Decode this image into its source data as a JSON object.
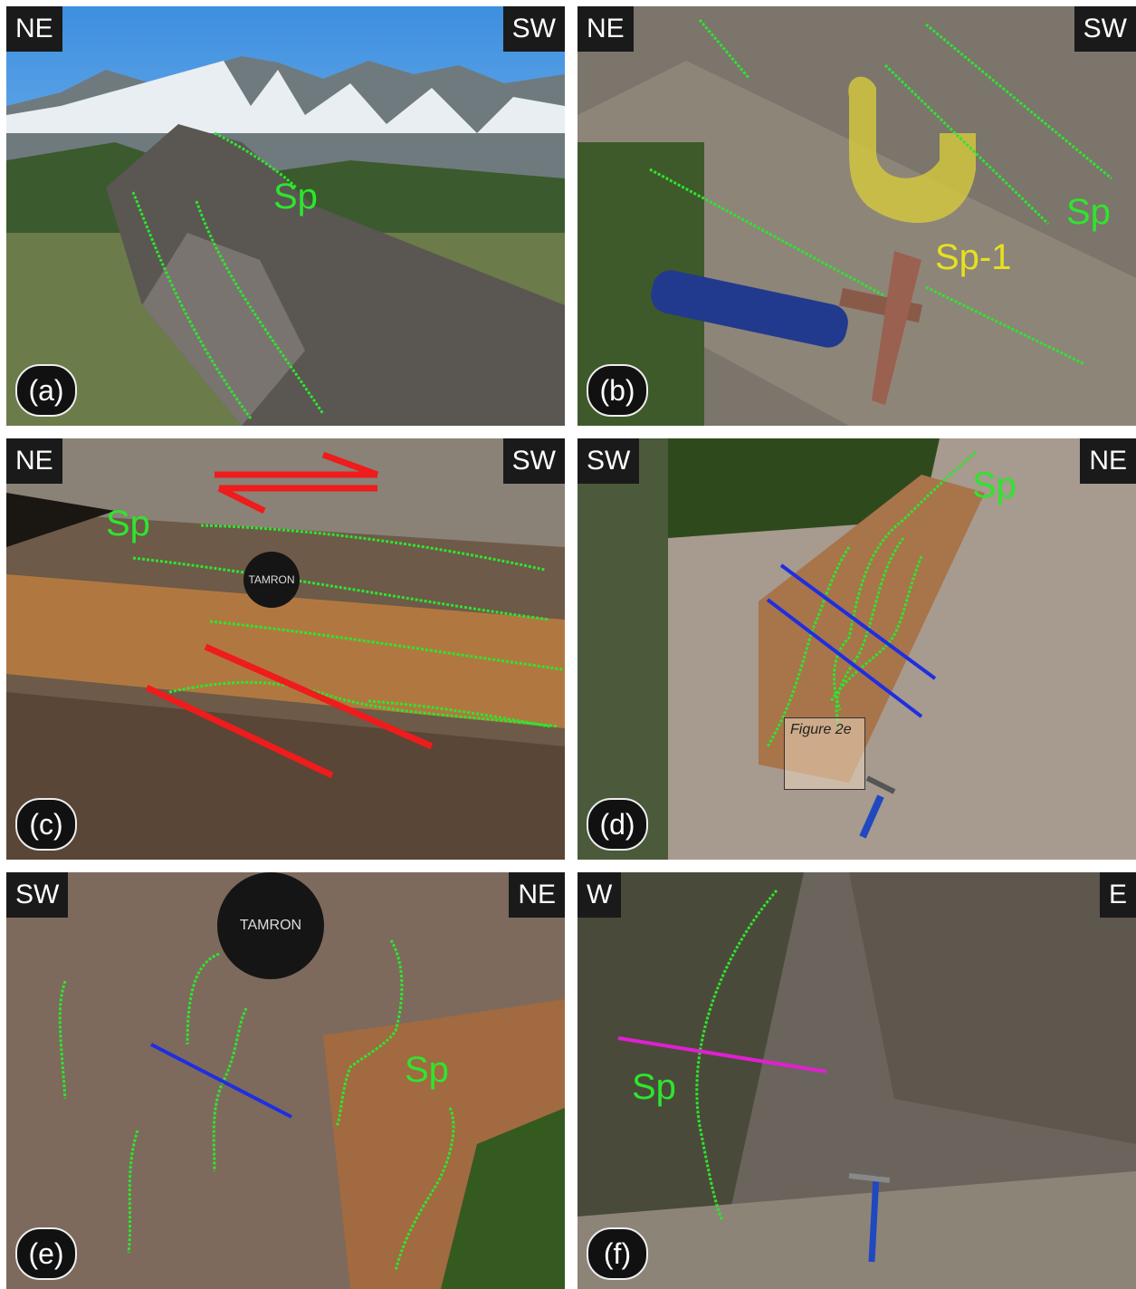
{
  "panels": [
    {
      "id": "a",
      "label": "(a)",
      "left_tag": "NE",
      "right_tag": "SW",
      "sp": "Sp"
    },
    {
      "id": "b",
      "label": "(b)",
      "left_tag": "NE",
      "right_tag": "SW",
      "sp": "Sp",
      "sp1": "Sp-1"
    },
    {
      "id": "c",
      "label": "(c)",
      "left_tag": "NE",
      "right_tag": "SW",
      "sp": "Sp",
      "lens_text": "TAMRON"
    },
    {
      "id": "d",
      "label": "(d)",
      "left_tag": "SW",
      "right_tag": "NE",
      "sp": "Sp",
      "fig_ref": "Figure 2e"
    },
    {
      "id": "e",
      "label": "(e)",
      "left_tag": "SW",
      "right_tag": "NE",
      "sp": "Sp",
      "lens_text": "TAMRON"
    },
    {
      "id": "f",
      "label": "(f)",
      "left_tag": "W",
      "right_tag": "E",
      "sp": "Sp"
    }
  ],
  "colors": {
    "foliation": "#2ee52e",
    "shear": "#ee1c1c",
    "axial": "#1f2ee0",
    "magenta": "#e020d0",
    "fold": "#e6e020"
  }
}
